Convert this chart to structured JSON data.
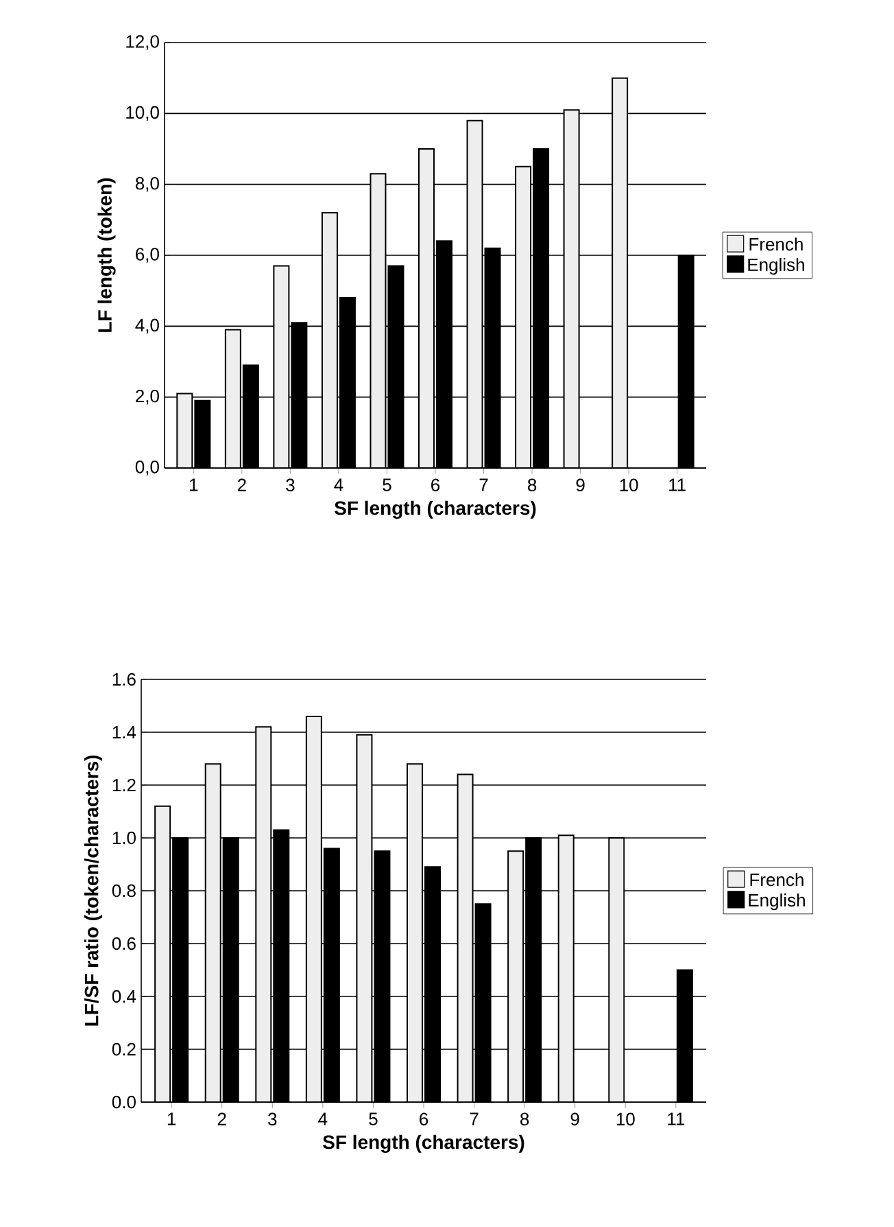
{
  "chart_data": [
    {
      "type": "bar",
      "xlabel": "SF length (characters)",
      "ylabel": "LF length (token)",
      "categories": [
        "1",
        "2",
        "3",
        "4",
        "5",
        "6",
        "7",
        "8",
        "9",
        "10",
        "11"
      ],
      "series": [
        {
          "name": "French",
          "color": "#eeeeee",
          "values": [
            2.1,
            3.9,
            5.7,
            7.2,
            8.3,
            9.0,
            9.8,
            8.5,
            10.1,
            11.0,
            null
          ]
        },
        {
          "name": "English",
          "color": "#000000",
          "values": [
            1.9,
            2.9,
            4.1,
            4.8,
            5.7,
            6.4,
            6.2,
            9.0,
            null,
            null,
            6.0
          ]
        }
      ],
      "ylim": [
        0,
        12
      ],
      "yticks": [
        {
          "value": 0,
          "label": "0,0"
        },
        {
          "value": 2,
          "label": "2,0"
        },
        {
          "value": 4,
          "label": "4,0"
        },
        {
          "value": 6,
          "label": "6,0"
        },
        {
          "value": 8,
          "label": "8,0"
        },
        {
          "value": 10,
          "label": "10,0"
        },
        {
          "value": 12,
          "label": "12,0"
        }
      ],
      "grid": "y",
      "legend": "right"
    },
    {
      "type": "bar",
      "xlabel": "SF length (characters)",
      "ylabel": "LF/SF ratio (token/characters)",
      "categories": [
        "1",
        "2",
        "3",
        "4",
        "5",
        "6",
        "7",
        "8",
        "9",
        "10",
        "11"
      ],
      "series": [
        {
          "name": "French",
          "color": "#eeeeee",
          "values": [
            1.12,
            1.28,
            1.42,
            1.46,
            1.39,
            1.28,
            1.24,
            0.95,
            1.01,
            1.0,
            null
          ]
        },
        {
          "name": "English",
          "color": "#000000",
          "values": [
            1.0,
            1.0,
            1.03,
            0.96,
            0.95,
            0.89,
            0.75,
            1.0,
            null,
            null,
            0.5
          ]
        }
      ],
      "ylim": [
        0,
        1.6
      ],
      "yticks": [
        {
          "value": 0,
          "label": "0.0"
        },
        {
          "value": 0.2,
          "label": "0.2"
        },
        {
          "value": 0.4,
          "label": "0.4"
        },
        {
          "value": 0.6,
          "label": "0.6"
        },
        {
          "value": 0.8,
          "label": "0.8"
        },
        {
          "value": 1.0,
          "label": "1.0"
        },
        {
          "value": 1.2,
          "label": "1.2"
        },
        {
          "value": 1.4,
          "label": "1.4"
        },
        {
          "value": 1.6,
          "label": "1.6"
        }
      ],
      "grid": "y",
      "legend": "right"
    }
  ]
}
